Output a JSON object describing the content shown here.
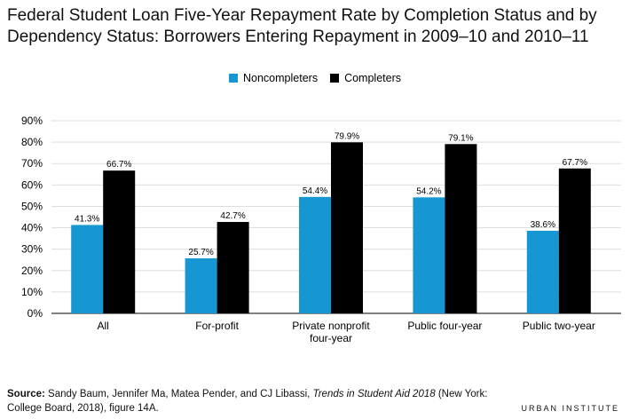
{
  "title": "Federal Student Loan Five-Year Repayment Rate by Completion Status and by Dependency Status: Borrowers Entering Repayment in 2009–10 and 2010–11",
  "source": {
    "label": "Source:",
    "pre": " Sandy Baum, Jennifer Ma, Matea Pender, and CJ Libassi, ",
    "italic": "Trends in Student Aid 2018",
    "post": " (New York: College Board, 2018), figure 14A."
  },
  "brand": "URBAN INSTITUTE",
  "colors": {
    "noncompleters": "#1696d2",
    "completers": "#000000"
  },
  "chart_data": {
    "type": "bar",
    "categories": [
      "All",
      "For-profit",
      "Private nonprofit four-year",
      "Public four-year",
      "Public two-year"
    ],
    "category_lines": [
      [
        "All"
      ],
      [
        "For-profit"
      ],
      [
        "Private nonprofit",
        "four-year"
      ],
      [
        "Public four-year"
      ],
      [
        "Public two-year"
      ]
    ],
    "series": [
      {
        "name": "Noncompleters",
        "values": [
          41.3,
          25.7,
          54.4,
          54.2,
          38.6
        ],
        "labels": [
          "41.3%",
          "25.7%",
          "54.4%",
          "54.2%",
          "38.6%"
        ]
      },
      {
        "name": "Completers",
        "values": [
          66.7,
          42.7,
          79.9,
          79.1,
          67.7
        ],
        "labels": [
          "66.7%",
          "42.7%",
          "79.9%",
          "79.1%",
          "67.7%"
        ]
      }
    ],
    "ylim": [
      0,
      90
    ],
    "yticks": [
      0,
      10,
      20,
      30,
      40,
      50,
      60,
      70,
      80,
      90
    ],
    "ytick_labels": [
      "0%",
      "10%",
      "20%",
      "30%",
      "40%",
      "50%",
      "60%",
      "70%",
      "80%",
      "90%"
    ],
    "grid": true,
    "legend": "top-center"
  }
}
